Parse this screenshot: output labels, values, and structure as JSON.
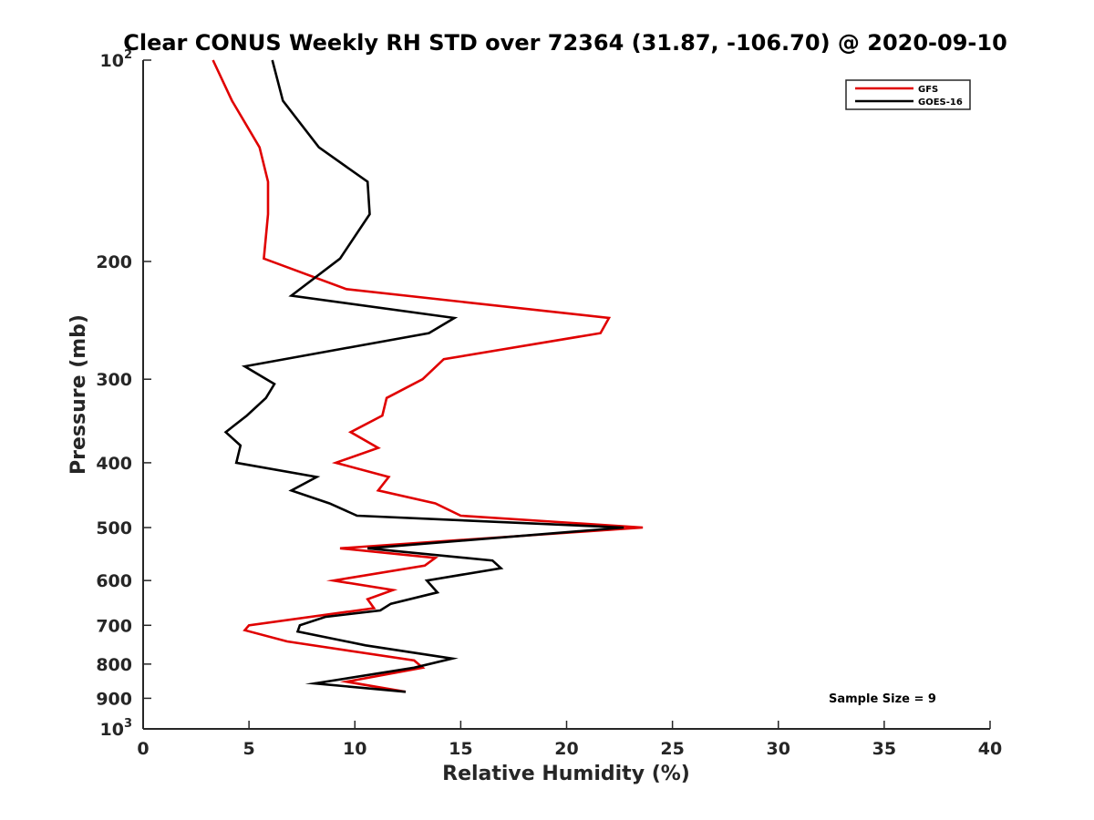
{
  "chart_data": {
    "type": "line",
    "title": "Clear CONUS Weekly RH STD over 72364 (31.87, -106.70) @ 2020-09-10",
    "xlabel": "Relative Humidity (%)",
    "ylabel": "Pressure (mb)",
    "xlim": [
      0,
      40
    ],
    "ylim": [
      100,
      1000
    ],
    "yscale": "log",
    "y_reversed": true,
    "x_ticks": [
      "0",
      "5",
      "10",
      "15",
      "20",
      "25",
      "30",
      "35",
      "40"
    ],
    "y_ticks": [
      {
        "value": 100,
        "label": "10",
        "sup": "2"
      },
      {
        "value": 200,
        "label": "200"
      },
      {
        "value": 300,
        "label": "300"
      },
      {
        "value": 400,
        "label": "400"
      },
      {
        "value": 500,
        "label": "500"
      },
      {
        "value": 600,
        "label": "600"
      },
      {
        "value": 700,
        "label": "700"
      },
      {
        "value": 800,
        "label": "800"
      },
      {
        "value": 900,
        "label": "900"
      },
      {
        "value": 1000,
        "label": "10",
        "sup": "3"
      }
    ],
    "legend_position": "top-right",
    "grid": false,
    "annotation": "Sample Size = 9",
    "series": [
      {
        "name": "GFS",
        "color": "#e00000",
        "points": [
          [
            3.3,
            100
          ],
          [
            4.2,
            115
          ],
          [
            5.5,
            135
          ],
          [
            5.9,
            152
          ],
          [
            5.9,
            170
          ],
          [
            5.7,
            198
          ],
          [
            9.6,
            220
          ],
          [
            22.0,
            243
          ],
          [
            21.6,
            256
          ],
          [
            14.2,
            280
          ],
          [
            13.2,
            300
          ],
          [
            11.5,
            320
          ],
          [
            11.3,
            340
          ],
          [
            9.8,
            360
          ],
          [
            11.1,
            380
          ],
          [
            9.1,
            400
          ],
          [
            11.6,
            420
          ],
          [
            11.1,
            440
          ],
          [
            13.8,
            460
          ],
          [
            15.0,
            480
          ],
          [
            23.6,
            500
          ],
          [
            9.3,
            537
          ],
          [
            13.8,
            555
          ],
          [
            13.3,
            570
          ],
          [
            9.0,
            600
          ],
          [
            11.8,
            620
          ],
          [
            10.6,
            640
          ],
          [
            10.9,
            660
          ],
          [
            5.0,
            700
          ],
          [
            4.8,
            712
          ],
          [
            6.8,
            740
          ],
          [
            12.8,
            790
          ],
          [
            13.2,
            810
          ],
          [
            9.6,
            850
          ],
          [
            12.4,
            880
          ]
        ]
      },
      {
        "name": "GOES-16",
        "color": "#000000",
        "points": [
          [
            6.1,
            100
          ],
          [
            6.6,
            115
          ],
          [
            8.3,
            135
          ],
          [
            10.6,
            152
          ],
          [
            10.7,
            170
          ],
          [
            9.3,
            198
          ],
          [
            7.0,
            225
          ],
          [
            14.7,
            243
          ],
          [
            13.5,
            256
          ],
          [
            4.8,
            287
          ],
          [
            6.2,
            305
          ],
          [
            5.8,
            320
          ],
          [
            4.9,
            340
          ],
          [
            3.9,
            360
          ],
          [
            4.6,
            377
          ],
          [
            4.4,
            400
          ],
          [
            8.2,
            420
          ],
          [
            7.0,
            440
          ],
          [
            8.8,
            460
          ],
          [
            10.1,
            480
          ],
          [
            22.7,
            500
          ],
          [
            10.6,
            537
          ],
          [
            16.5,
            560
          ],
          [
            16.9,
            575
          ],
          [
            13.4,
            600
          ],
          [
            13.9,
            625
          ],
          [
            11.7,
            650
          ],
          [
            11.2,
            665
          ],
          [
            8.6,
            680
          ],
          [
            7.4,
            700
          ],
          [
            7.3,
            715
          ],
          [
            10.5,
            750
          ],
          [
            14.6,
            785
          ],
          [
            12.8,
            810
          ],
          [
            8.1,
            855
          ],
          [
            12.4,
            880
          ]
        ]
      }
    ]
  }
}
